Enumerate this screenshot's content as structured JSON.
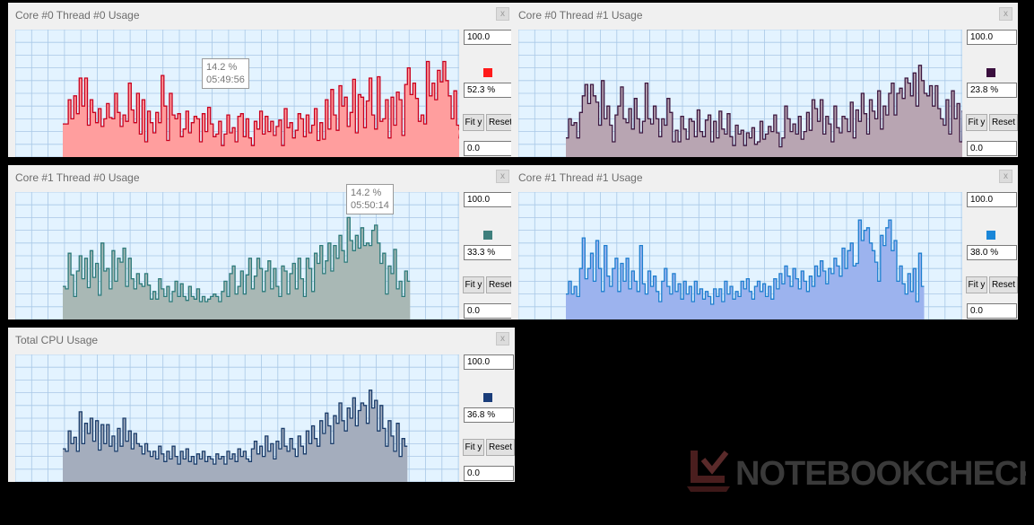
{
  "panels": [
    {
      "id": "core0-thread0",
      "title": "Core #0 Thread #0 Usage",
      "close_label": "x",
      "max_value": "100.0",
      "current_value": "52.3 %",
      "min_value": "0.0",
      "fit_label": "Fit y",
      "reset_label": "Reset",
      "line_color": "#c8001e",
      "fill_color": "#ff9e9e",
      "swatch_color": "#ff1a1a",
      "tooltip": {
        "value": "14.2 %",
        "time": "05:49:56"
      },
      "chart_data": {
        "type": "area",
        "ylim": [
          0,
          100
        ],
        "grid": true,
        "values": [
          26,
          26,
          45,
          30,
          48,
          34,
          62,
          40,
          62,
          25,
          45,
          35,
          27,
          38,
          24,
          30,
          42,
          31,
          30,
          50,
          35,
          24,
          33,
          28,
          58,
          37,
          27,
          50,
          18,
          45,
          12,
          36,
          27,
          19,
          35,
          27,
          64,
          40,
          13,
          50,
          33,
          30,
          34,
          16,
          22,
          36,
          19,
          27,
          32,
          30,
          12,
          34,
          20,
          39,
          26,
          16,
          18,
          28,
          9,
          18,
          33,
          19,
          23,
          12,
          32,
          34,
          16,
          30,
          15,
          9,
          28,
          22,
          36,
          18,
          32,
          20,
          28,
          17,
          24,
          29,
          9,
          38,
          23,
          27,
          15,
          21,
          34,
          30,
          16,
          33,
          19,
          25,
          38,
          13,
          27,
          14,
          45,
          22,
          53,
          33,
          21,
          56,
          40,
          47,
          24,
          35,
          61,
          19,
          49,
          47,
          23,
          44,
          62,
          33,
          22,
          63,
          28,
          30,
          45,
          15,
          47,
          25,
          51,
          45,
          17,
          57,
          70,
          49,
          58,
          46,
          28,
          33,
          26,
          75,
          48,
          58,
          45,
          68,
          59,
          75,
          60,
          48,
          30,
          52,
          25,
          22,
          15,
          53
        ]
      }
    },
    {
      "id": "core0-thread1",
      "title": "Core #0 Thread #1 Usage",
      "close_label": "x",
      "max_value": "100.0",
      "current_value": "23.8 %",
      "min_value": "0.0",
      "fit_label": "Fit y",
      "reset_label": "Reset",
      "line_color": "#3d1840",
      "fill_color": "#b8a5b2",
      "swatch_color": "#3a0f3e",
      "tooltip": null,
      "chart_data": {
        "type": "area",
        "ylim": [
          0,
          100
        ],
        "grid": true,
        "values": [
          15,
          30,
          25,
          27,
          15,
          35,
          48,
          57,
          42,
          57,
          48,
          43,
          25,
          60,
          30,
          40,
          25,
          12,
          33,
          40,
          55,
          30,
          27,
          38,
          22,
          46,
          30,
          19,
          28,
          58,
          30,
          26,
          40,
          30,
          16,
          30,
          25,
          46,
          35,
          12,
          21,
          12,
          32,
          22,
          14,
          30,
          28,
          16,
          37,
          20,
          16,
          29,
          33,
          12,
          28,
          15,
          36,
          22,
          18,
          34,
          16,
          9,
          25,
          18,
          21,
          9,
          19,
          15,
          23,
          10,
          12,
          28,
          14,
          18,
          24,
          20,
          33,
          19,
          8,
          15,
          40,
          30,
          20,
          26,
          18,
          32,
          14,
          20,
          35,
          21,
          45,
          38,
          28,
          45,
          18,
          32,
          26,
          12,
          40,
          23,
          19,
          32,
          30,
          20,
          43,
          15,
          37,
          28,
          50,
          34,
          18,
          45,
          36,
          30,
          52,
          22,
          40,
          33,
          50,
          58,
          33,
          50,
          54,
          46,
          62,
          58,
          48,
          66,
          40,
          72,
          60,
          50,
          48,
          56,
          40,
          56,
          38,
          30,
          25,
          45,
          18,
          52,
          30,
          42,
          12,
          36,
          20
        ]
      }
    },
    {
      "id": "core1-thread0",
      "title": "Core #1 Thread #0 Usage",
      "close_label": "x",
      "max_value": "100.0",
      "current_value": "33.3 %",
      "min_value": "0.0",
      "fit_label": "Fit y",
      "reset_label": "Reset",
      "line_color": "#2c7a7a",
      "fill_color": "#a9b8b5",
      "swatch_color": "#3f7f7d",
      "tooltip": {
        "value": "14.2 %",
        "time": "05:50:14"
      },
      "chart_data": {
        "type": "area",
        "ylim": [
          0,
          100
        ],
        "grid": true,
        "values": [
          26,
          24,
          52,
          35,
          18,
          38,
          50,
          32,
          48,
          25,
          54,
          33,
          44,
          19,
          60,
          38,
          40,
          24,
          54,
          30,
          48,
          45,
          56,
          26,
          48,
          32,
          24,
          36,
          28,
          26,
          36,
          27,
          16,
          22,
          16,
          32,
          24,
          18,
          26,
          14,
          22,
          30,
          18,
          28,
          18,
          15,
          26,
          18,
          16,
          24,
          14,
          18,
          14,
          16,
          18,
          20,
          18,
          14,
          22,
          30,
          18,
          36,
          42,
          20,
          26,
          38,
          20,
          35,
          48,
          24,
          34,
          48,
          40,
          22,
          38,
          46,
          24,
          40,
          26,
          18,
          42,
          38,
          20,
          36,
          44,
          24,
          48,
          32,
          18,
          48,
          40,
          22,
          52,
          44,
          58,
          36,
          46,
          60,
          38,
          58,
          48,
          66,
          54,
          45,
          80,
          62,
          54,
          66,
          56,
          72,
          58,
          60,
          58,
          70,
          74,
          60,
          44,
          52,
          20,
          42,
          36,
          55,
          24,
          30,
          18,
          38,
          30
        ]
      }
    },
    {
      "id": "core1-thread1",
      "title": "Core #1 Thread #1 Usage",
      "close_label": "x",
      "max_value": "100.0",
      "current_value": "38.0 %",
      "min_value": "0.0",
      "fit_label": "Fit y",
      "reset_label": "Reset",
      "line_color": "#1e7fcf",
      "fill_color": "#9cb3ee",
      "swatch_color": "#1a86d8",
      "tooltip": null,
      "chart_data": {
        "type": "area",
        "ylim": [
          0,
          100
        ],
        "grid": true,
        "values": [
          20,
          30,
          20,
          26,
          18,
          40,
          64,
          32,
          40,
          52,
          30,
          62,
          40,
          22,
          58,
          34,
          26,
          40,
          48,
          22,
          44,
          30,
          48,
          24,
          38,
          30,
          22,
          58,
          28,
          20,
          38,
          26,
          34,
          22,
          14,
          30,
          40,
          26,
          20,
          36,
          22,
          28,
          16,
          30,
          20,
          26,
          14,
          30,
          20,
          24,
          16,
          22,
          18,
          12,
          24,
          18,
          24,
          14,
          30,
          20,
          26,
          16,
          22,
          18,
          30,
          24,
          32,
          22,
          16,
          26,
          30,
          22,
          28,
          18,
          26,
          16,
          32,
          24,
          36,
          28,
          42,
          34,
          26,
          40,
          32,
          24,
          38,
          30,
          22,
          34,
          26,
          42,
          34,
          46,
          38,
          28,
          40,
          36,
          48,
          42,
          34,
          56,
          40,
          54,
          60,
          42,
          44,
          78,
          62,
          70,
          72,
          60,
          54,
          45,
          30,
          66,
          58,
          72,
          78,
          54,
          62,
          30,
          42,
          28,
          20,
          36,
          22,
          40,
          14,
          52,
          26
        ]
      }
    },
    {
      "id": "total-cpu",
      "title": "Total CPU Usage",
      "close_label": "x",
      "max_value": "100.0",
      "current_value": "36.8 %",
      "min_value": "0.0",
      "fit_label": "Fit y",
      "reset_label": "Reset",
      "line_color": "#1a3c6a",
      "fill_color": "#a4adbd",
      "swatch_color": "#1a3d7a",
      "tooltip": null,
      "chart_data": {
        "type": "area",
        "ylim": [
          0,
          100
        ],
        "grid": true,
        "values": [
          26,
          24,
          40,
          30,
          35,
          24,
          55,
          30,
          46,
          38,
          50,
          32,
          48,
          25,
          45,
          30,
          45,
          28,
          36,
          24,
          42,
          28,
          50,
          32,
          40,
          26,
          38,
          30,
          28,
          22,
          30,
          24,
          20,
          24,
          18,
          28,
          22,
          16,
          24,
          18,
          28,
          20,
          14,
          24,
          18,
          26,
          16,
          20,
          14,
          22,
          18,
          24,
          16,
          20,
          18,
          14,
          22,
          18,
          20,
          14,
          24,
          18,
          22,
          16,
          26,
          20,
          24,
          18,
          16,
          26,
          32,
          22,
          28,
          20,
          36,
          24,
          30,
          18,
          32,
          26,
          42,
          28,
          24,
          34,
          26,
          20,
          36,
          28,
          22,
          40,
          30,
          44,
          34,
          28,
          48,
          38,
          54,
          44,
          30,
          52,
          46,
          62,
          48,
          40,
          58,
          50,
          66,
          44,
          56,
          62,
          60,
          46,
          72,
          58,
          64,
          40,
          60,
          42,
          28,
          48,
          36,
          24,
          46,
          20,
          34,
          28
        ]
      }
    }
  ],
  "watermark": {
    "text": "NOTEBOOKCHECK"
  }
}
